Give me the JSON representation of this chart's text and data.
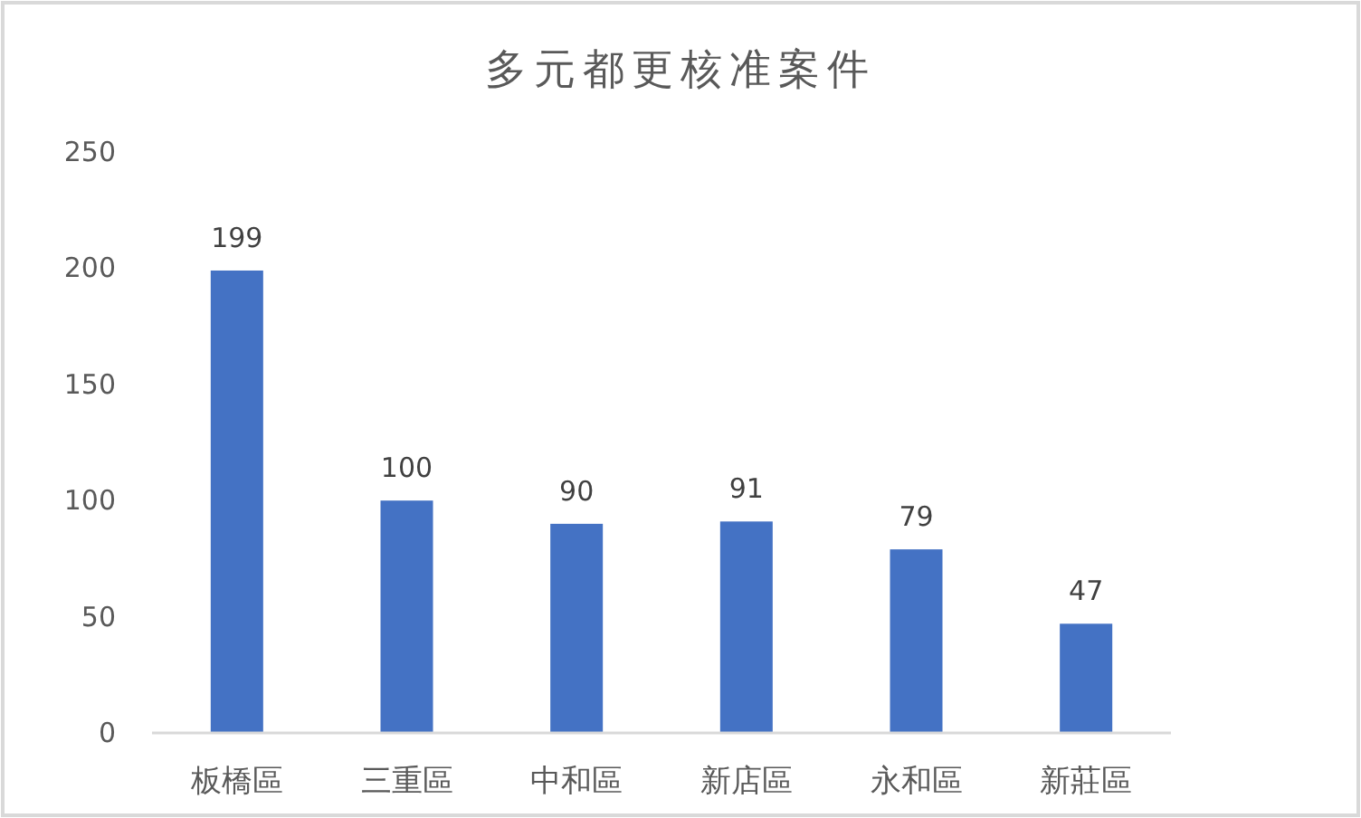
{
  "chart_data": {
    "type": "bar",
    "title": "多元都更核准案件",
    "categories": [
      "板橋區",
      "三重區",
      "中和區",
      "新店區",
      "永和區",
      "新莊區"
    ],
    "values": [
      199,
      100,
      90,
      91,
      79,
      47
    ],
    "color": "#4472c4",
    "ylim": [
      0,
      250
    ],
    "yticks": [
      0,
      50,
      100,
      150,
      200,
      250
    ],
    "data_labels": true
  }
}
